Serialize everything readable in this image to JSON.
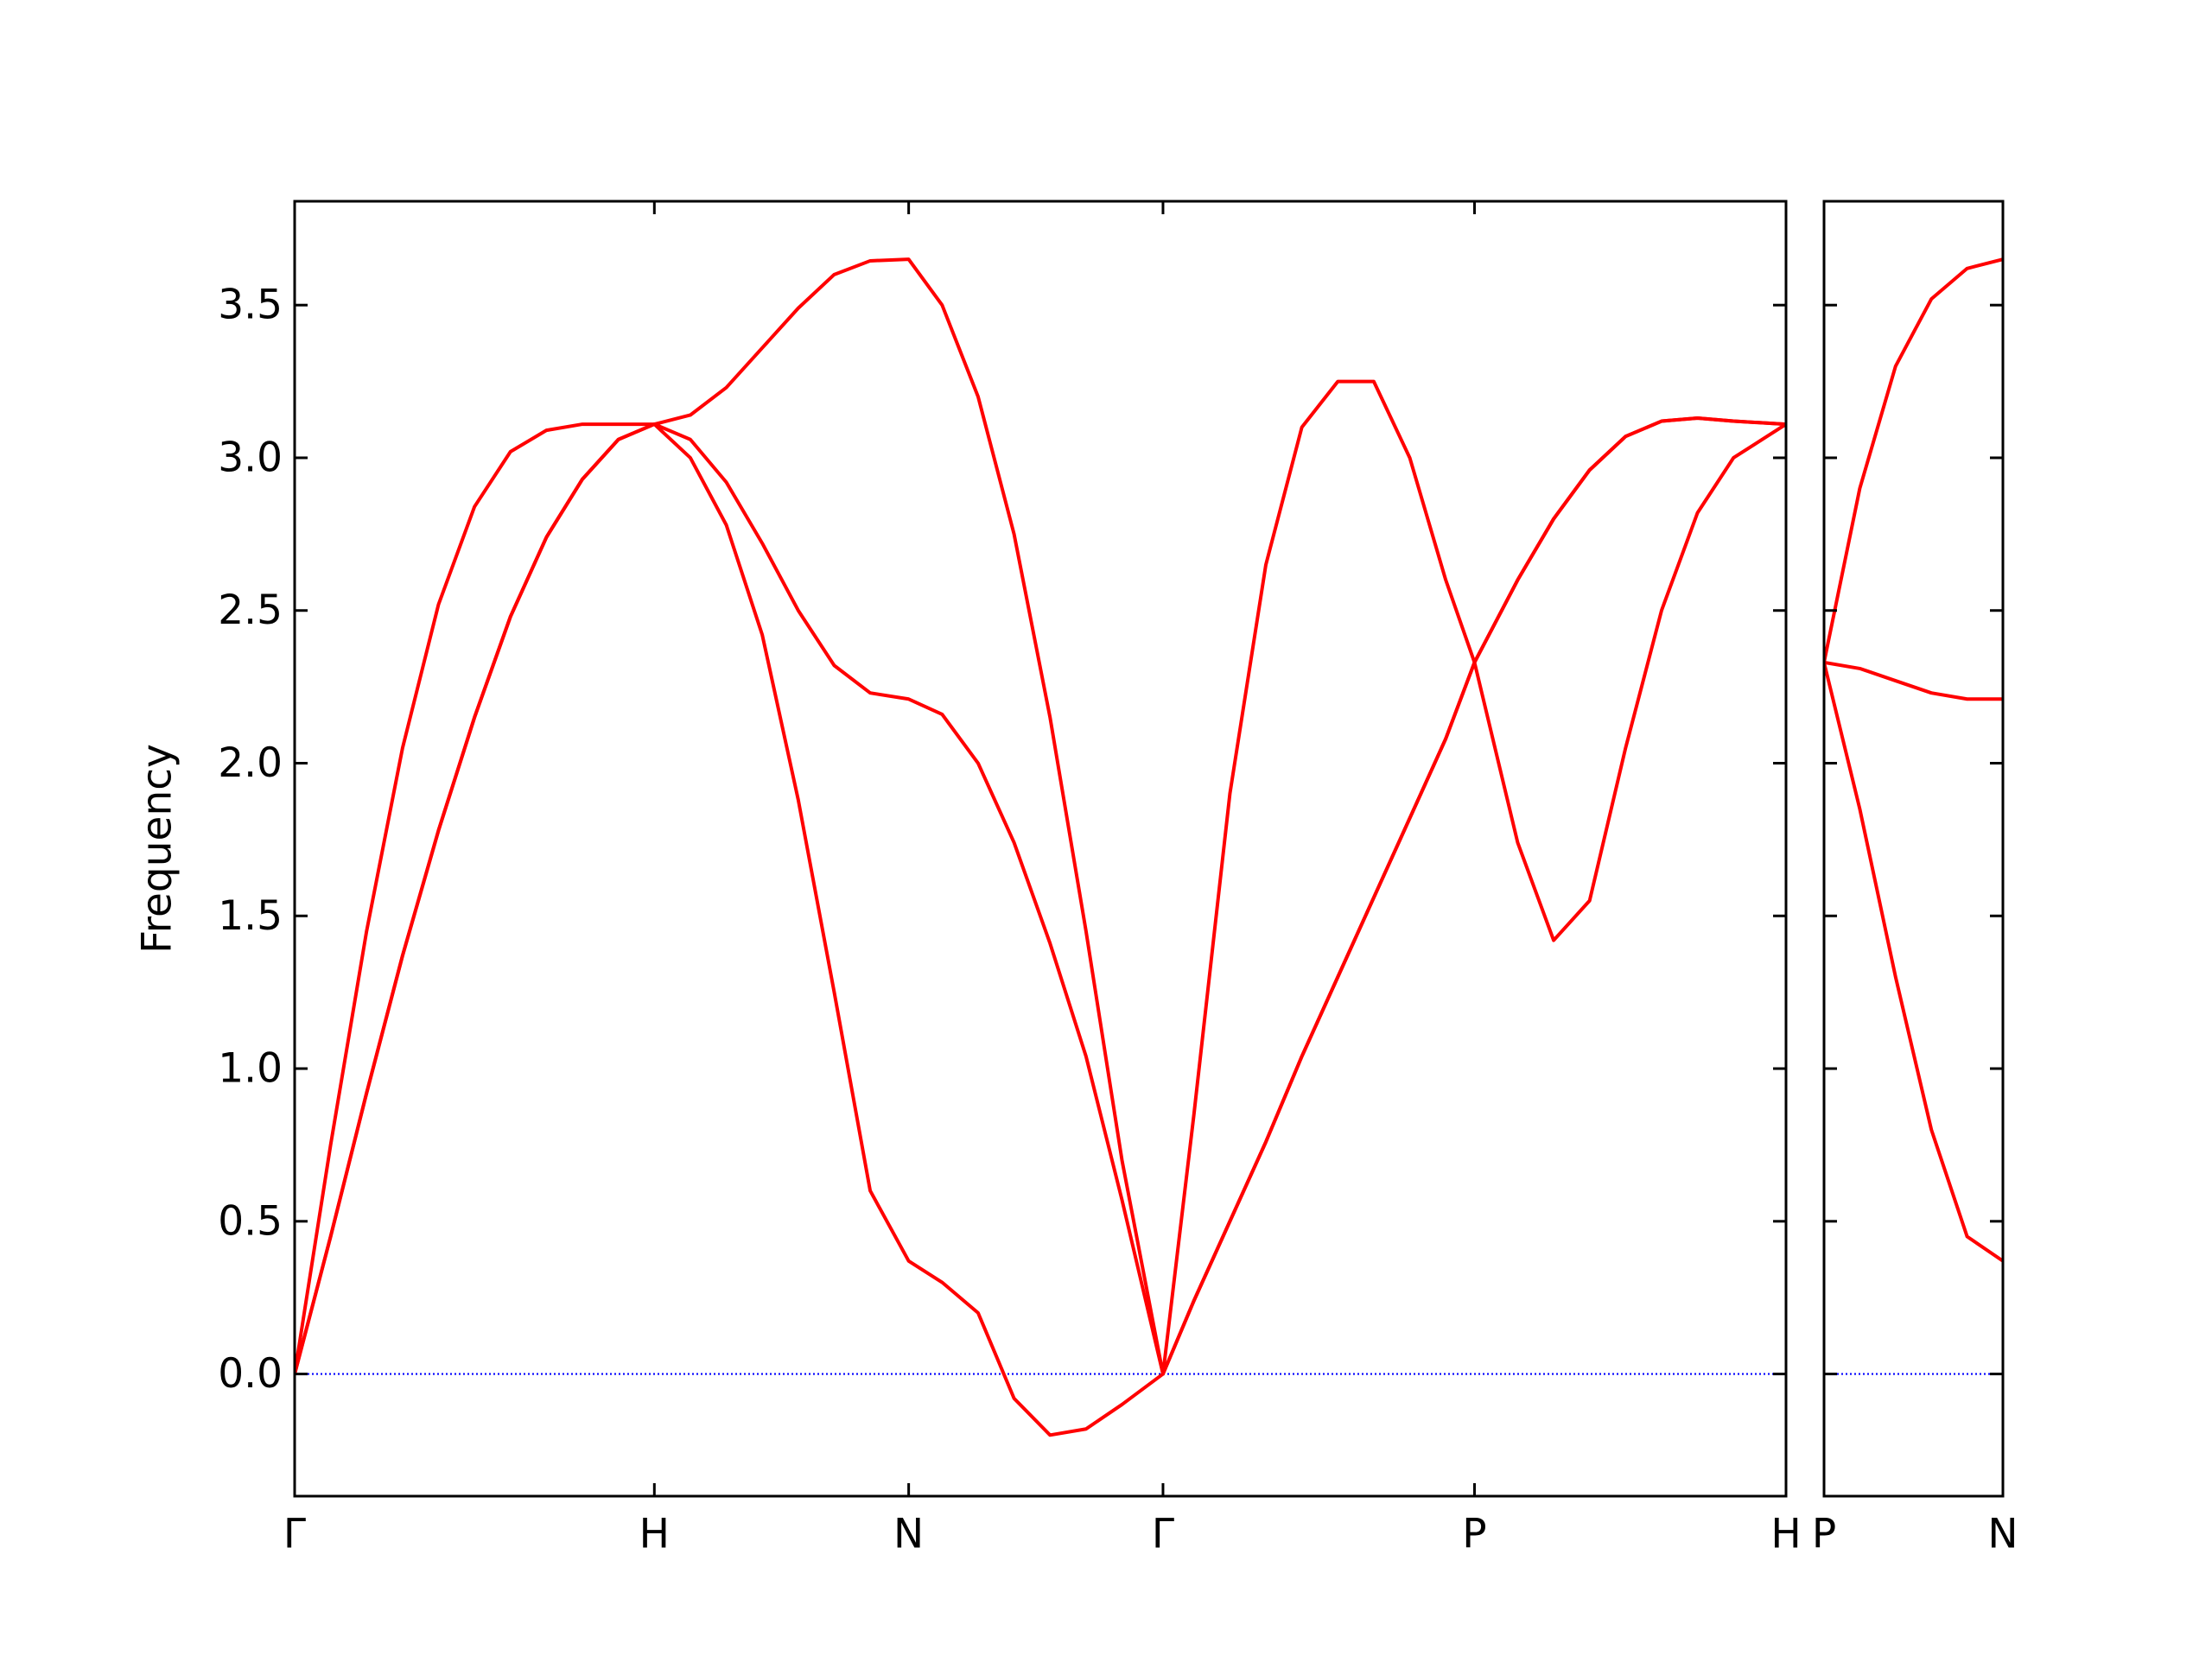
{
  "chart_data": [
    {
      "type": "line",
      "ylabel": "Frequency",
      "x": [
        0,
        0.1,
        0.2,
        0.3,
        0.4,
        0.5,
        0.6,
        0.7,
        0.8,
        0.9,
        1.0,
        1.1,
        1.2,
        1.3,
        1.4,
        1.5,
        1.6,
        1.707,
        1.8,
        1.9,
        2.0,
        2.1,
        2.2,
        2.3,
        2.414,
        2.5,
        2.6,
        2.7,
        2.8,
        2.9,
        3.0,
        3.1,
        3.2,
        3.28,
        3.4,
        3.5,
        3.6,
        3.7,
        3.8,
        3.9,
        4.0,
        4.146
      ],
      "xlim": [
        0,
        4.146
      ],
      "ylim": [
        -0.4,
        3.84
      ],
      "xticks": [
        {
          "value": 0,
          "label": "Γ"
        },
        {
          "value": 1.0,
          "label": "H"
        },
        {
          "value": 1.707,
          "label": "N"
        },
        {
          "value": 2.414,
          "label": "Γ"
        },
        {
          "value": 3.28,
          "label": "P"
        },
        {
          "value": 4.146,
          "label": "H"
        }
      ],
      "yticks": [
        {
          "value": 0,
          "label": "0.0"
        },
        0.5,
        {
          "value": 1,
          "label": "1.0"
        },
        1.5,
        {
          "value": 2,
          "label": "2.0"
        },
        2.5,
        {
          "value": 3,
          "label": "3.0"
        },
        3.5
      ],
      "reference_line": {
        "y": 0,
        "color": "#0000ff",
        "style": "dotted"
      },
      "series": [
        {
          "color": "#ff0000",
          "values": [
            0,
            0.45,
            0.92,
            1.37,
            1.78,
            2.15,
            2.48,
            2.74,
            2.93,
            3.06,
            3.11,
            3.0,
            2.78,
            2.42,
            1.88,
            1.25,
            0.6,
            0.37,
            0.3,
            0.2,
            -0.08,
            -0.2,
            -0.18,
            -0.1,
            0,
            0.24,
            0.5,
            0.76,
            1.04,
            1.3,
            1.56,
            1.82,
            2.08,
            2.33,
            1.74,
            1.42,
            1.55,
            2.05,
            2.5,
            2.82,
            3.0,
            3.11
          ]
        },
        {
          "color": "#ff0000",
          "values": [
            0,
            0.45,
            0.92,
            1.37,
            1.78,
            2.15,
            2.48,
            2.74,
            2.93,
            3.06,
            3.11,
            3.06,
            2.92,
            2.72,
            2.5,
            2.32,
            2.23,
            2.21,
            2.16,
            2.0,
            1.74,
            1.41,
            1.04,
            0.57,
            0,
            0.24,
            0.5,
            0.76,
            1.04,
            1.3,
            1.56,
            1.82,
            2.08,
            2.33,
            2.6,
            2.8,
            2.96,
            3.07,
            3.12,
            3.13,
            3.12,
            3.11
          ]
        },
        {
          "color": "#ff0000",
          "values": [
            0,
            0.75,
            1.45,
            2.05,
            2.52,
            2.84,
            3.02,
            3.09,
            3.11,
            3.11,
            3.11,
            3.14,
            3.23,
            3.36,
            3.49,
            3.6,
            3.645,
            3.65,
            3.5,
            3.2,
            2.75,
            2.15,
            1.45,
            0.7,
            0,
            0.85,
            1.9,
            2.65,
            3.1,
            3.25,
            3.25,
            3.0,
            2.6,
            2.33,
            2.6,
            2.8,
            2.96,
            3.07,
            3.12,
            3.13,
            3.12,
            3.11
          ]
        }
      ]
    },
    {
      "type": "line",
      "x": [
        0,
        0.1,
        0.2,
        0.3,
        0.4,
        0.5
      ],
      "xlim": [
        0,
        0.5
      ],
      "ylim": [
        -0.4,
        3.84
      ],
      "xticks": [
        {
          "value": 0,
          "label": "P"
        },
        {
          "value": 0.5,
          "label": "N"
        }
      ],
      "yticks": [
        0,
        0.5,
        1,
        1.5,
        2,
        2.5,
        3,
        3.5
      ],
      "show_ytick_labels": false,
      "reference_line": {
        "y": 0,
        "color": "#0000ff",
        "style": "dotted"
      },
      "series": [
        {
          "color": "#ff0000",
          "values": [
            2.33,
            1.85,
            1.3,
            0.8,
            0.45,
            0.37
          ]
        },
        {
          "color": "#ff0000",
          "values": [
            2.33,
            2.31,
            2.27,
            2.23,
            2.21,
            2.21
          ]
        },
        {
          "color": "#ff0000",
          "values": [
            2.33,
            2.9,
            3.3,
            3.52,
            3.62,
            3.65
          ]
        }
      ]
    }
  ]
}
